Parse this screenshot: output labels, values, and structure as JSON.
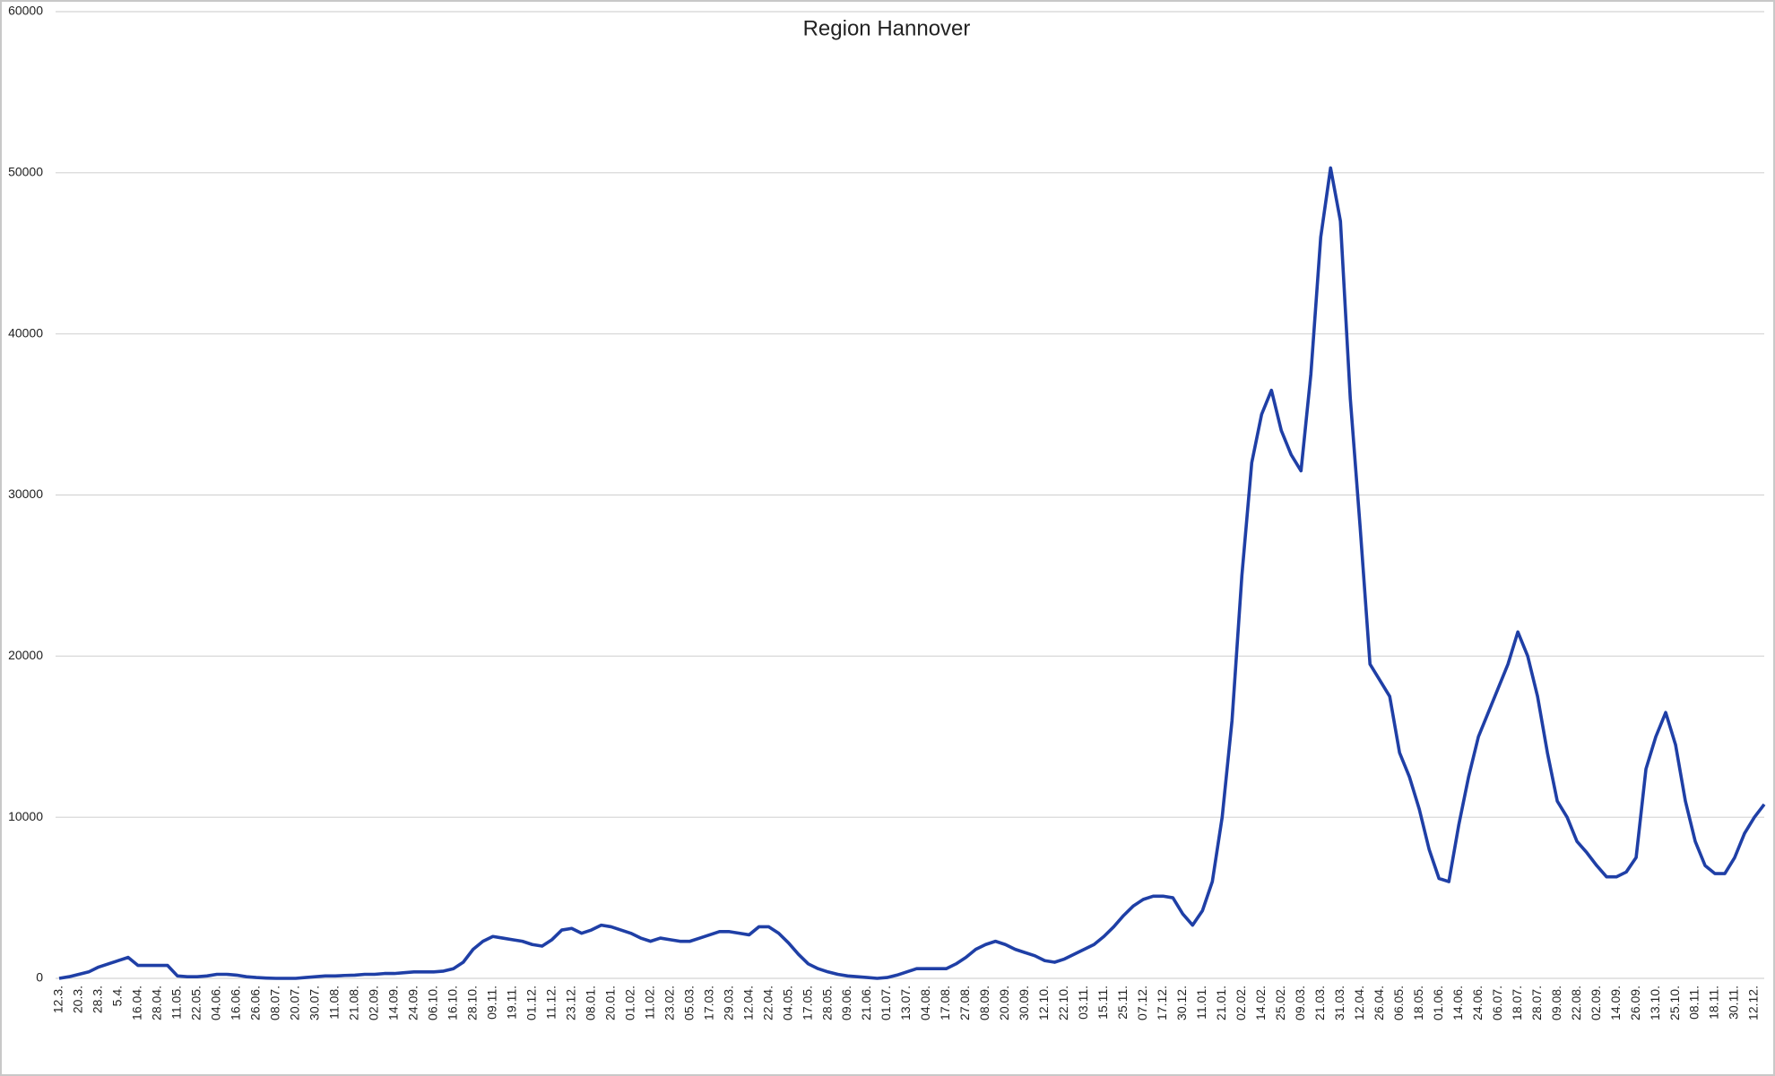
{
  "chart_data": {
    "type": "line",
    "title": "Region Hannover",
    "categories": [
      "12.3.",
      null,
      "20.3.",
      null,
      "28.3.",
      null,
      "5.4.",
      null,
      "16.04.",
      null,
      "28.04.",
      null,
      "11.05.",
      null,
      "22.05.",
      null,
      "04.06.",
      null,
      "16.06.",
      null,
      "26.06.",
      null,
      "08.07.",
      null,
      "20.07.",
      null,
      "30.07.",
      null,
      "11.08.",
      null,
      "21.08.",
      null,
      "02.09.",
      null,
      "14.09.",
      null,
      "24.09.",
      null,
      "06.10.",
      null,
      "16.10.",
      null,
      "28.10.",
      null,
      "09.11.",
      null,
      "19.11.",
      null,
      "01.12.",
      null,
      "11.12.",
      null,
      "23.12.",
      null,
      "08.01.",
      null,
      "20.01.",
      null,
      "01.02.",
      null,
      "11.02.",
      null,
      "23.02.",
      null,
      "05.03.",
      null,
      "17.03.",
      null,
      "29.03.",
      null,
      "12.04.",
      null,
      "22.04.",
      null,
      "04.05.",
      null,
      "17.05.",
      null,
      "28.05.",
      null,
      "09.06.",
      null,
      "21.06.",
      null,
      "01.07.",
      null,
      "13.07.",
      null,
      "04.08.",
      null,
      "17.08.",
      null,
      "27.08.",
      null,
      "08.09.",
      null,
      "20.09.",
      null,
      "30.09.",
      null,
      "12.10.",
      null,
      "22.10.",
      null,
      "03.11.",
      null,
      "15.11.",
      null,
      "25.11.",
      null,
      "07.12.",
      null,
      "17.12.",
      null,
      "30.12.",
      null,
      "11.01.",
      null,
      "21.01.",
      null,
      "02.02.",
      null,
      "14.02.",
      null,
      "25.02.",
      null,
      "09.03.",
      null,
      "21.03.",
      null,
      "31.03.",
      null,
      "12.04.",
      null,
      "26.04.",
      null,
      "06.05.",
      null,
      "18.05.",
      null,
      "01.06.",
      null,
      "14.06.",
      null,
      "24.06.",
      null,
      "06.07.",
      null,
      "18.07.",
      null,
      "28.07.",
      null,
      "09.08.",
      null,
      "22.08.",
      null,
      "02.09.",
      null,
      "14.09.",
      null,
      "26.09.",
      null,
      "13.10.",
      null,
      "25.10.",
      null,
      "08.11.",
      null,
      "18.11.",
      null,
      "30.11.",
      null,
      "12.12.",
      null
    ],
    "series": [
      {
        "color": "#1f3fa6",
        "values": [
          0,
          100,
          250,
          400,
          700,
          900,
          1100,
          1300,
          800,
          800,
          800,
          800,
          150,
          100,
          100,
          150,
          250,
          250,
          200,
          100,
          50,
          20,
          0,
          0,
          0,
          50,
          100,
          150,
          150,
          180,
          200,
          250,
          250,
          300,
          300,
          350,
          400,
          400,
          400,
          450,
          600,
          1000,
          1800,
          2300,
          2600,
          2500,
          2400,
          2300,
          2100,
          2000,
          2400,
          3000,
          3100,
          2800,
          3000,
          3300,
          3200,
          3000,
          2800,
          2500,
          2300,
          2500,
          2400,
          2300,
          2300,
          2500,
          2700,
          2900,
          2900,
          2800,
          2700,
          3200,
          3200,
          2800,
          2200,
          1500,
          900,
          600,
          400,
          250,
          150,
          100,
          50,
          0,
          50,
          200,
          400,
          600,
          600,
          600,
          600,
          900,
          1300,
          1800,
          2100,
          2300,
          2100,
          1800,
          1600,
          1400,
          1100,
          1000,
          1200,
          1500,
          1800,
          2100,
          2600,
          3200,
          3900,
          4500,
          4900,
          5100,
          5100,
          5000,
          4000,
          3300,
          4200,
          6000,
          10000,
          16000,
          25000,
          32000,
          35000,
          36500,
          34000,
          32500,
          31500,
          37500,
          46000,
          50300,
          47000,
          36000,
          28000,
          19500,
          18500,
          17500,
          14000,
          12500,
          10500,
          8000,
          6200,
          6000,
          9500,
          12500,
          15000,
          16500,
          18000,
          19500,
          21500,
          20000,
          17500,
          14000,
          11000,
          10000,
          8500,
          7800,
          7000,
          6300,
          6300,
          6600,
          7500,
          13000,
          15000,
          16500,
          14500,
          11000,
          8500,
          7000,
          6500,
          6500,
          7500,
          9000,
          10000,
          10800
        ]
      }
    ],
    "ylim": [
      0,
      60000
    ],
    "yticks": [
      0,
      10000,
      20000,
      30000,
      40000,
      50000,
      60000
    ],
    "grid": true
  }
}
